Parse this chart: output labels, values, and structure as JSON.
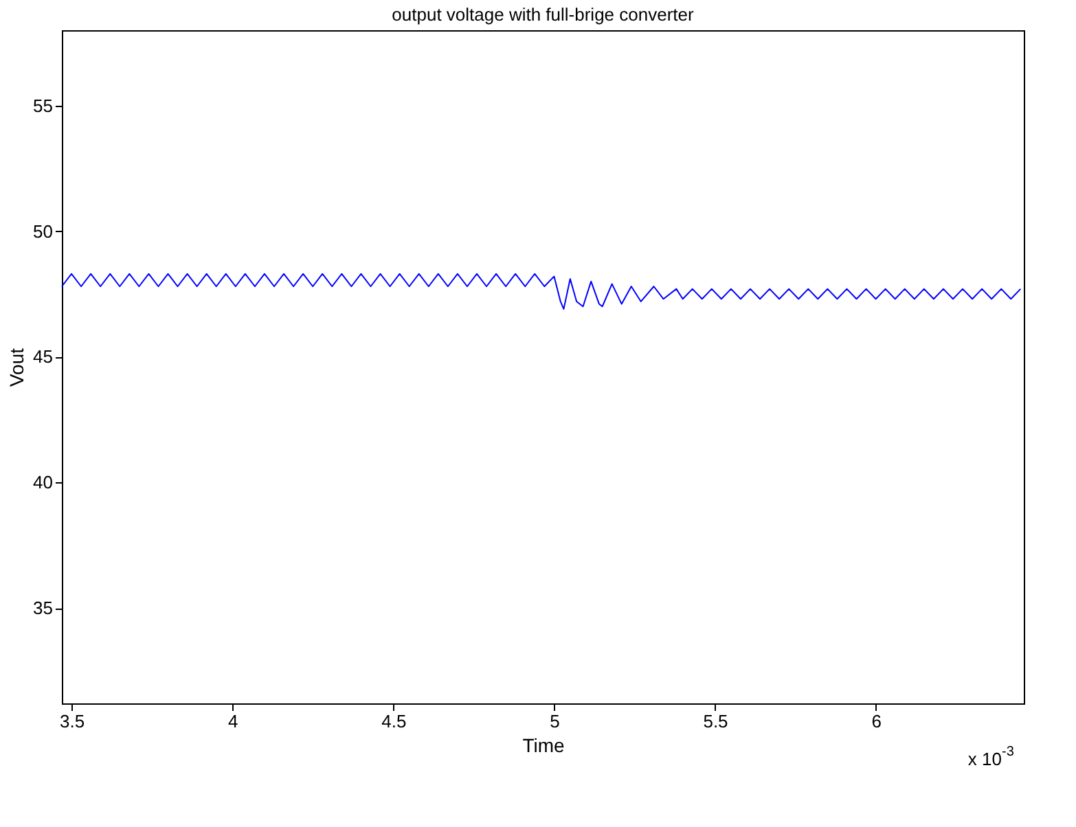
{
  "chart_data": {
    "type": "line",
    "title": "output voltage with full-brige converter",
    "xlabel": "Time",
    "ylabel": "Vout",
    "annotations": [
      "x 10$^{-3}$"
    ],
    "xlim": [
      3.47,
      6.46
    ],
    "xticks": [
      3.5,
      4,
      4.5,
      5,
      5.5,
      6
    ],
    "ylim": [
      31.2,
      58
    ],
    "yticks": [
      35,
      40,
      45,
      50,
      55
    ],
    "grid": false,
    "marker": "none",
    "line_style": "solid",
    "series": [
      {
        "color": "#0000ff",
        "x": [
          3.47,
          3.5,
          3.53,
          3.56,
          3.59,
          3.62,
          3.65,
          3.68,
          3.71,
          3.74,
          3.77,
          3.8,
          3.83,
          3.86,
          3.89,
          3.92,
          3.95,
          3.98,
          4.01,
          4.04,
          4.07,
          4.1,
          4.13,
          4.16,
          4.19,
          4.22,
          4.25,
          4.28,
          4.31,
          4.34,
          4.37,
          4.4,
          4.43,
          4.46,
          4.49,
          4.52,
          4.55,
          4.58,
          4.61,
          4.64,
          4.67,
          4.7,
          4.73,
          4.76,
          4.79,
          4.82,
          4.85,
          4.88,
          4.91,
          4.94,
          4.97,
          5.0,
          5.02,
          5.03,
          5.05,
          5.07,
          5.09,
          5.115,
          5.14,
          5.15,
          5.18,
          5.21,
          5.24,
          5.27,
          5.31,
          5.34,
          5.38,
          5.4,
          5.43,
          5.46,
          5.49,
          5.52,
          5.55,
          5.58,
          5.61,
          5.64,
          5.67,
          5.7,
          5.73,
          5.76,
          5.79,
          5.82,
          5.85,
          5.88,
          5.91,
          5.94,
          5.97,
          6.0,
          6.03,
          6.06,
          6.09,
          6.12,
          6.15,
          6.18,
          6.21,
          6.24,
          6.27,
          6.3,
          6.33,
          6.36,
          6.39,
          6.42,
          6.45
        ],
        "values": [
          47.8,
          48.3,
          47.8,
          48.3,
          47.8,
          48.3,
          47.8,
          48.3,
          47.8,
          48.3,
          47.8,
          48.3,
          47.8,
          48.3,
          47.8,
          48.3,
          47.8,
          48.3,
          47.8,
          48.3,
          47.8,
          48.3,
          47.8,
          48.3,
          47.8,
          48.3,
          47.8,
          48.3,
          47.8,
          48.3,
          47.8,
          48.3,
          47.8,
          48.3,
          47.8,
          48.3,
          47.8,
          48.3,
          47.8,
          48.3,
          47.8,
          48.3,
          47.8,
          48.3,
          47.8,
          48.3,
          47.8,
          48.3,
          47.8,
          48.3,
          47.8,
          48.2,
          47.2,
          46.9,
          48.1,
          47.2,
          47.0,
          48.0,
          47.1,
          47.0,
          47.9,
          47.1,
          47.8,
          47.2,
          47.8,
          47.3,
          47.7,
          47.3,
          47.7,
          47.3,
          47.7,
          47.3,
          47.7,
          47.3,
          47.7,
          47.3,
          47.7,
          47.3,
          47.7,
          47.3,
          47.7,
          47.3,
          47.7,
          47.3,
          47.7,
          47.3,
          47.7,
          47.3,
          47.7,
          47.3,
          47.7,
          47.3,
          47.7,
          47.3,
          47.7,
          47.3,
          47.7,
          47.3,
          47.7,
          47.3,
          47.7,
          47.3,
          47.7
        ]
      }
    ]
  }
}
